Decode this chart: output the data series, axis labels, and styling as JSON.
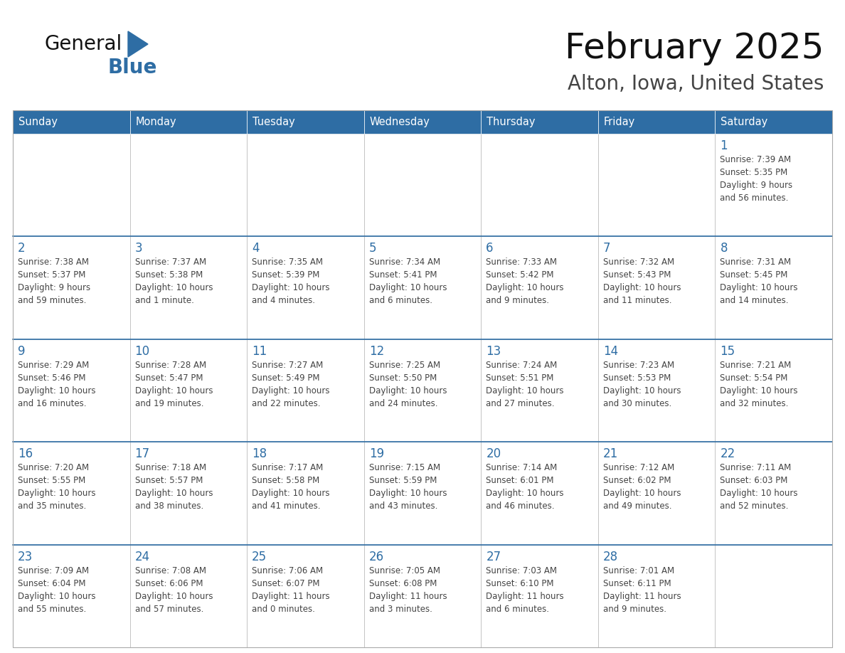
{
  "title": "February 2025",
  "subtitle": "Alton, Iowa, United States",
  "header_bg": "#2E6DA4",
  "header_text_color": "#FFFFFF",
  "day_number_color": "#2E6DA4",
  "text_color": "#444444",
  "grid_color": "#AAAAAA",
  "separator_color": "#2E6DA4",
  "days_of_week": [
    "Sunday",
    "Monday",
    "Tuesday",
    "Wednesday",
    "Thursday",
    "Friday",
    "Saturday"
  ],
  "logo_general_color": "#111111",
  "logo_blue_color": "#2E6DA4",
  "logo_triangle_color": "#2E6DA4",
  "title_color": "#111111",
  "subtitle_color": "#444444",
  "weeks": [
    [
      {
        "day": "",
        "info": ""
      },
      {
        "day": "",
        "info": ""
      },
      {
        "day": "",
        "info": ""
      },
      {
        "day": "",
        "info": ""
      },
      {
        "day": "",
        "info": ""
      },
      {
        "day": "",
        "info": ""
      },
      {
        "day": "1",
        "info": "Sunrise: 7:39 AM\nSunset: 5:35 PM\nDaylight: 9 hours\nand 56 minutes."
      }
    ],
    [
      {
        "day": "2",
        "info": "Sunrise: 7:38 AM\nSunset: 5:37 PM\nDaylight: 9 hours\nand 59 minutes."
      },
      {
        "day": "3",
        "info": "Sunrise: 7:37 AM\nSunset: 5:38 PM\nDaylight: 10 hours\nand 1 minute."
      },
      {
        "day": "4",
        "info": "Sunrise: 7:35 AM\nSunset: 5:39 PM\nDaylight: 10 hours\nand 4 minutes."
      },
      {
        "day": "5",
        "info": "Sunrise: 7:34 AM\nSunset: 5:41 PM\nDaylight: 10 hours\nand 6 minutes."
      },
      {
        "day": "6",
        "info": "Sunrise: 7:33 AM\nSunset: 5:42 PM\nDaylight: 10 hours\nand 9 minutes."
      },
      {
        "day": "7",
        "info": "Sunrise: 7:32 AM\nSunset: 5:43 PM\nDaylight: 10 hours\nand 11 minutes."
      },
      {
        "day": "8",
        "info": "Sunrise: 7:31 AM\nSunset: 5:45 PM\nDaylight: 10 hours\nand 14 minutes."
      }
    ],
    [
      {
        "day": "9",
        "info": "Sunrise: 7:29 AM\nSunset: 5:46 PM\nDaylight: 10 hours\nand 16 minutes."
      },
      {
        "day": "10",
        "info": "Sunrise: 7:28 AM\nSunset: 5:47 PM\nDaylight: 10 hours\nand 19 minutes."
      },
      {
        "day": "11",
        "info": "Sunrise: 7:27 AM\nSunset: 5:49 PM\nDaylight: 10 hours\nand 22 minutes."
      },
      {
        "day": "12",
        "info": "Sunrise: 7:25 AM\nSunset: 5:50 PM\nDaylight: 10 hours\nand 24 minutes."
      },
      {
        "day": "13",
        "info": "Sunrise: 7:24 AM\nSunset: 5:51 PM\nDaylight: 10 hours\nand 27 minutes."
      },
      {
        "day": "14",
        "info": "Sunrise: 7:23 AM\nSunset: 5:53 PM\nDaylight: 10 hours\nand 30 minutes."
      },
      {
        "day": "15",
        "info": "Sunrise: 7:21 AM\nSunset: 5:54 PM\nDaylight: 10 hours\nand 32 minutes."
      }
    ],
    [
      {
        "day": "16",
        "info": "Sunrise: 7:20 AM\nSunset: 5:55 PM\nDaylight: 10 hours\nand 35 minutes."
      },
      {
        "day": "17",
        "info": "Sunrise: 7:18 AM\nSunset: 5:57 PM\nDaylight: 10 hours\nand 38 minutes."
      },
      {
        "day": "18",
        "info": "Sunrise: 7:17 AM\nSunset: 5:58 PM\nDaylight: 10 hours\nand 41 minutes."
      },
      {
        "day": "19",
        "info": "Sunrise: 7:15 AM\nSunset: 5:59 PM\nDaylight: 10 hours\nand 43 minutes."
      },
      {
        "day": "20",
        "info": "Sunrise: 7:14 AM\nSunset: 6:01 PM\nDaylight: 10 hours\nand 46 minutes."
      },
      {
        "day": "21",
        "info": "Sunrise: 7:12 AM\nSunset: 6:02 PM\nDaylight: 10 hours\nand 49 minutes."
      },
      {
        "day": "22",
        "info": "Sunrise: 7:11 AM\nSunset: 6:03 PM\nDaylight: 10 hours\nand 52 minutes."
      }
    ],
    [
      {
        "day": "23",
        "info": "Sunrise: 7:09 AM\nSunset: 6:04 PM\nDaylight: 10 hours\nand 55 minutes."
      },
      {
        "day": "24",
        "info": "Sunrise: 7:08 AM\nSunset: 6:06 PM\nDaylight: 10 hours\nand 57 minutes."
      },
      {
        "day": "25",
        "info": "Sunrise: 7:06 AM\nSunset: 6:07 PM\nDaylight: 11 hours\nand 0 minutes."
      },
      {
        "day": "26",
        "info": "Sunrise: 7:05 AM\nSunset: 6:08 PM\nDaylight: 11 hours\nand 3 minutes."
      },
      {
        "day": "27",
        "info": "Sunrise: 7:03 AM\nSunset: 6:10 PM\nDaylight: 11 hours\nand 6 minutes."
      },
      {
        "day": "28",
        "info": "Sunrise: 7:01 AM\nSunset: 6:11 PM\nDaylight: 11 hours\nand 9 minutes."
      },
      {
        "day": "",
        "info": ""
      }
    ]
  ]
}
